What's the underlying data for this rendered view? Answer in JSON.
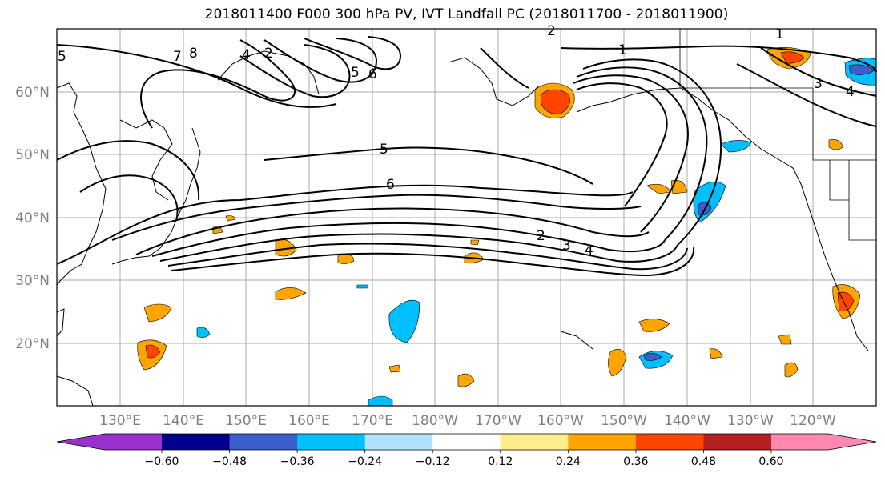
{
  "title": "2018011400 F000 300 hPa PV, IVT Landfall PC (2018011700 - 2018011900)",
  "lat_labels": [
    "60°N",
    "50°N",
    "40°N",
    "30°N",
    "20°N"
  ],
  "lon_labels": [
    "130°E",
    "140°E",
    "150°E",
    "160°E",
    "170°E",
    "180°W",
    "170°W",
    "160°W",
    "150°W",
    "140°W",
    "130°W",
    "120°W"
  ],
  "contour_labels": [
    "1",
    "2",
    "3",
    "4",
    "5",
    "6",
    "7",
    "8",
    "2",
    "3",
    "4",
    "5",
    "6",
    "2",
    "3",
    "4"
  ],
  "colorbar": {
    "ticks": [
      "−0.60",
      "−0.48",
      "−0.36",
      "−0.24",
      "−0.12",
      "0.12",
      "0.24",
      "0.36",
      "0.48",
      "0.60"
    ],
    "colors": [
      "#9932cc",
      "#00008b",
      "#3a5fcd",
      "#00bfff",
      "#b0e2ff",
      "#ffffff",
      "#ffec8b",
      "#ffa500",
      "#ff4500",
      "#b22222",
      "#ff88b0"
    ]
  }
}
